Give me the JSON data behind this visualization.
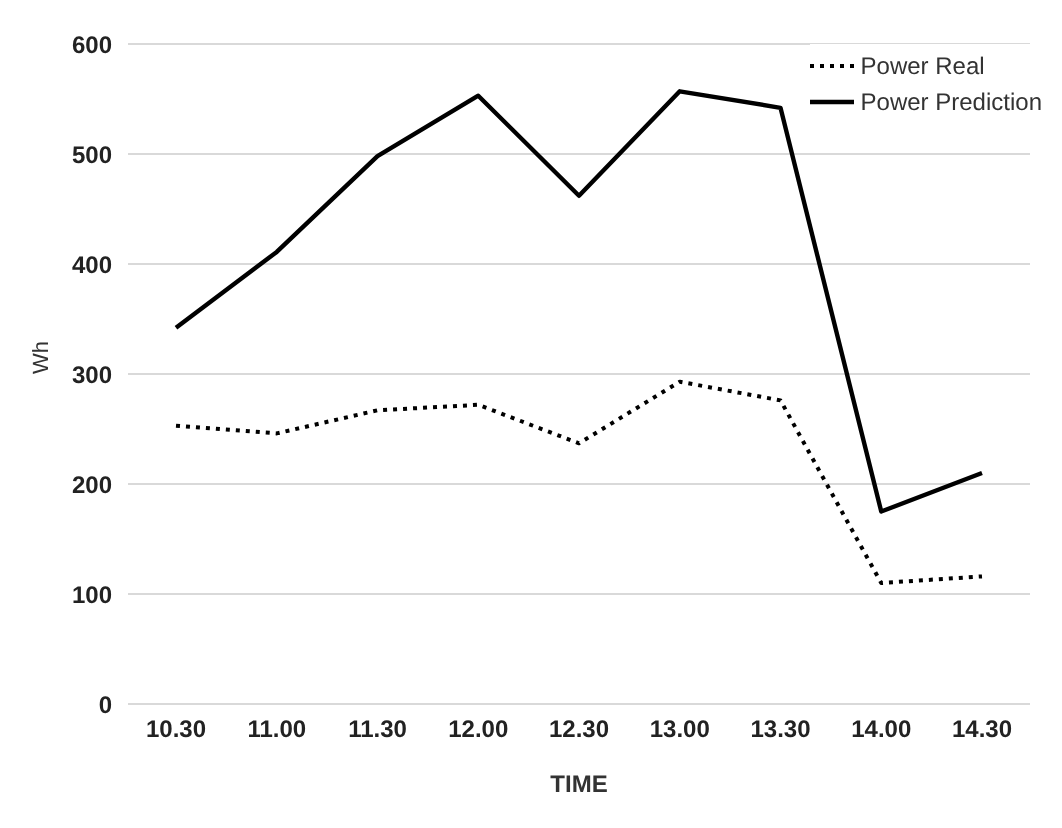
{
  "chart_data": {
    "type": "line",
    "xlabel": "TIME",
    "ylabel": "Wh",
    "categories": [
      "10.30",
      "11.00",
      "11.30",
      "12.00",
      "12.30",
      "13.00",
      "13.30",
      "14.00",
      "14.30"
    ],
    "series": [
      {
        "name": "Power Real",
        "color": "#000000",
        "line_style": "dotted",
        "values": [
          253,
          246,
          267,
          272,
          237,
          293,
          276,
          110,
          116
        ]
      },
      {
        "name": "Power Prediction",
        "color": "#000000",
        "line_style": "solid",
        "values": [
          342,
          411,
          498,
          553,
          462,
          557,
          542,
          175,
          210
        ]
      }
    ],
    "ylim": [
      0,
      600
    ],
    "yticks": [
      0,
      100,
      200,
      300,
      400,
      500,
      600
    ],
    "grid": "y",
    "legend": "top right",
    "marker": "none"
  }
}
